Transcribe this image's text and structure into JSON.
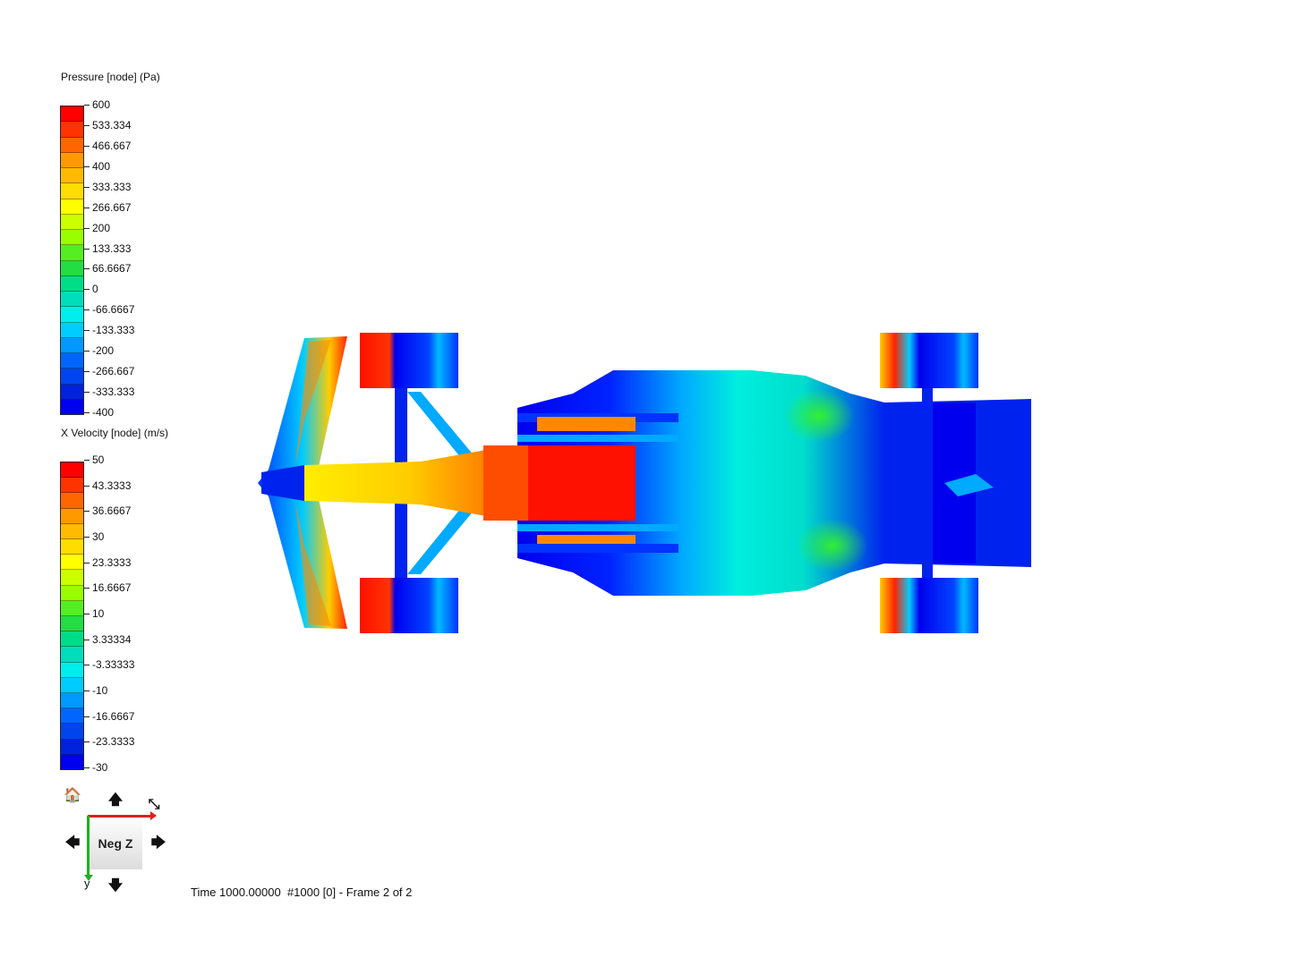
{
  "pressure_legend": {
    "title": "Pressure [node] (Pa)",
    "labels": [
      "600",
      "533.334",
      "466.667",
      "400",
      "333.333",
      "266.667",
      "200",
      "133.333",
      "66.6667",
      "0",
      "-66.6667",
      "-133.333",
      "-200",
      "-266.667",
      "-333.333",
      "-400"
    ]
  },
  "velocity_legend": {
    "title": "X Velocity [node] (m/s)",
    "labels": [
      "50",
      "43.3333",
      "36.6667",
      "30",
      "23.3333",
      "16.6667",
      "10",
      "3.33334",
      "-3.33333",
      "-10",
      "-16.6667",
      "-23.3333",
      "-30"
    ]
  },
  "colormap": [
    "#ff0000",
    "#ff3300",
    "#ff6600",
    "#ff9900",
    "#ffbb00",
    "#ffdd00",
    "#ffff00",
    "#ccff00",
    "#99ff00",
    "#55ee22",
    "#22dd44",
    "#00dd88",
    "#00ddbb",
    "#00eeee",
    "#00ccff",
    "#0099ff",
    "#0066ff",
    "#0044ee",
    "#0022dd",
    "#0000ee"
  ],
  "navigation": {
    "view_label": "Neg Z",
    "axis_y_label": "y",
    "arrows": {
      "home": "🏠",
      "up": "🡅",
      "down": "🡇",
      "left": "🡄",
      "right": "🡆",
      "fit": "⤡"
    }
  },
  "status": {
    "text": "Time 1000.00000  #1000 [0] - Frame 2 of 2"
  }
}
